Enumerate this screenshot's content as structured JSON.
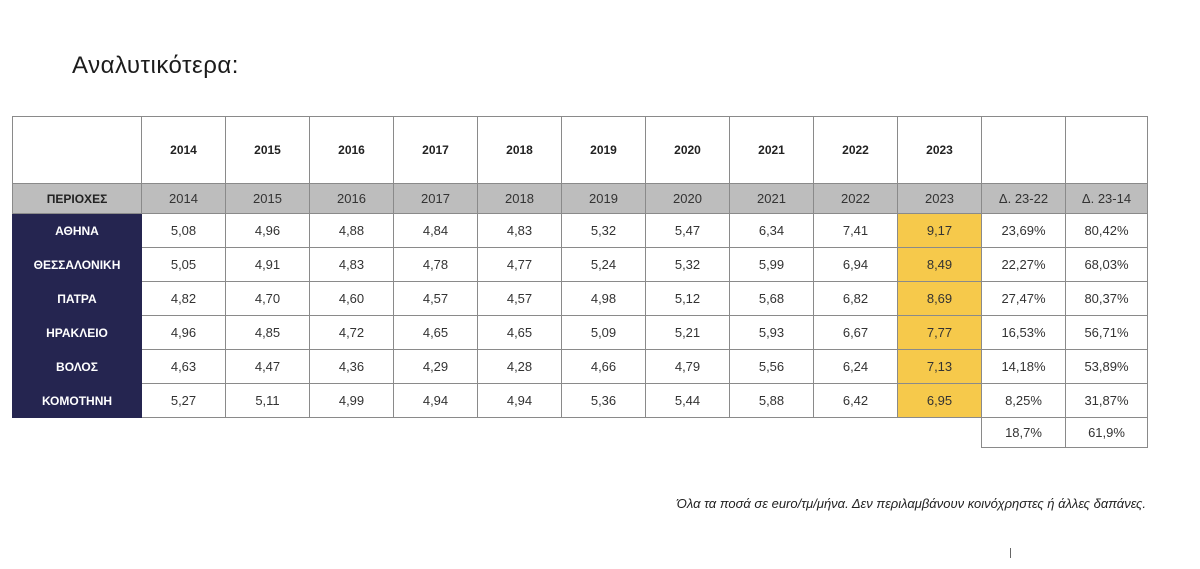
{
  "heading": "Αναλυτικότερα:",
  "table": {
    "year_row": [
      "2014",
      "2015",
      "2016",
      "2017",
      "2018",
      "2019",
      "2020",
      "2021",
      "2022",
      "2023",
      "",
      ""
    ],
    "header_row": [
      "ΠΕΡΙΟΧΕΣ",
      "2014",
      "2015",
      "2016",
      "2017",
      "2018",
      "2019",
      "2020",
      "2021",
      "2022",
      "2023",
      "Δ. 23-22",
      "Δ. 23-14"
    ],
    "rows": [
      {
        "region": "ΑΘΗΝΑ",
        "values": [
          "5,08",
          "4,96",
          "4,88",
          "4,84",
          "4,83",
          "5,32",
          "5,47",
          "6,34",
          "7,41",
          "9,17",
          "23,69%",
          "80,42%"
        ]
      },
      {
        "region": "ΘΕΣΣΑΛΟΝΙΚΗ",
        "values": [
          "5,05",
          "4,91",
          "4,83",
          "4,78",
          "4,77",
          "5,24",
          "5,32",
          "5,99",
          "6,94",
          "8,49",
          "22,27%",
          "68,03%"
        ]
      },
      {
        "region": "ΠΑΤΡΑ",
        "values": [
          "4,82",
          "4,70",
          "4,60",
          "4,57",
          "4,57",
          "4,98",
          "5,12",
          "5,68",
          "6,82",
          "8,69",
          "27,47%",
          "80,37%"
        ]
      },
      {
        "region": "ΗΡΑΚΛΕΙΟ",
        "values": [
          "4,96",
          "4,85",
          "4,72",
          "4,65",
          "4,65",
          "5,09",
          "5,21",
          "5,93",
          "6,67",
          "7,77",
          "16,53%",
          "56,71%"
        ]
      },
      {
        "region": "ΒΟΛΟΣ",
        "values": [
          "4,63",
          "4,47",
          "4,36",
          "4,29",
          "4,28",
          "4,66",
          "4,79",
          "5,56",
          "6,24",
          "7,13",
          "14,18%",
          "53,89%"
        ]
      },
      {
        "region": "ΚΟΜΟΤΗΝΗ",
        "values": [
          "5,27",
          "5,11",
          "4,99",
          "4,94",
          "4,94",
          "5,36",
          "5,44",
          "5,88",
          "6,42",
          "6,95",
          "8,25%",
          "31,87%"
        ]
      }
    ],
    "totals": [
      "18,7%",
      "61,9%"
    ]
  },
  "footnote": "Όλα τα ποσά σε euro/τμ/μήνα. Δεν περιλαμβάνουν κοινόχρηστες ή άλλες δαπάνες.",
  "colors": {
    "region_cell": "#252550",
    "highlight_2023": "#f6c94b",
    "header_band": "#bdbdbd"
  }
}
